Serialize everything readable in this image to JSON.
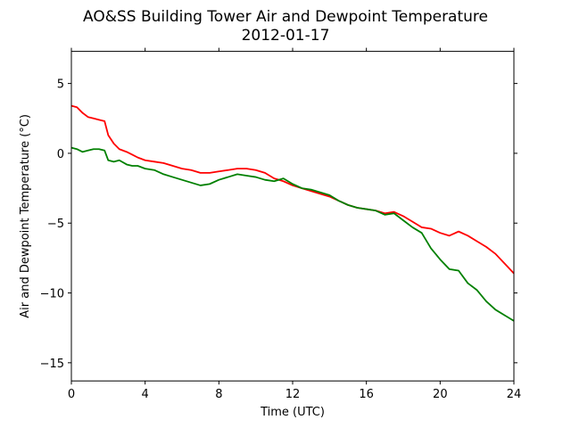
{
  "chart_data": {
    "type": "line",
    "title": "AO&SS Building Tower Air and Dewpoint Temperature",
    "subtitle": "2012-01-17",
    "xlabel": "Time (UTC)",
    "ylabel": "Air and Dewpoint Temperature (°C)",
    "xlim": [
      0,
      24
    ],
    "ylim": [
      -16.3,
      7.3
    ],
    "xticks": [
      0,
      4,
      8,
      12,
      16,
      20,
      24
    ],
    "xtick_labels": [
      "0",
      "4",
      "8",
      "12",
      "16",
      "20",
      "24"
    ],
    "yticks": [
      5,
      0,
      -5,
      -10,
      -15
    ],
    "ytick_labels": [
      "5",
      "0",
      "−5",
      "−10",
      "−15"
    ],
    "grid": false,
    "series": [
      {
        "color": "#ff0000",
        "x": [
          0,
          0.3,
          0.6,
          0.9,
          1.2,
          1.5,
          1.8,
          2.0,
          2.3,
          2.6,
          3.0,
          3.3,
          3.6,
          4.0,
          4.5,
          5.0,
          5.5,
          6.0,
          6.5,
          7.0,
          7.5,
          8.0,
          8.5,
          9.0,
          9.5,
          10.0,
          10.5,
          11.0,
          11.5,
          12.0,
          12.5,
          13.0,
          13.5,
          14.0,
          14.5,
          15.0,
          15.5,
          16.0,
          16.5,
          17.0,
          17.5,
          18.0,
          18.5,
          19.0,
          19.5,
          20.0,
          20.5,
          21.0,
          21.5,
          22.0,
          22.5,
          23.0,
          23.5,
          24.0
        ],
        "values": [
          3.4,
          3.3,
          2.9,
          2.6,
          2.5,
          2.4,
          2.3,
          1.3,
          0.7,
          0.3,
          0.1,
          -0.1,
          -0.3,
          -0.5,
          -0.6,
          -0.7,
          -0.9,
          -1.1,
          -1.2,
          -1.4,
          -1.4,
          -1.3,
          -1.2,
          -1.1,
          -1.1,
          -1.2,
          -1.4,
          -1.8,
          -2.0,
          -2.3,
          -2.5,
          -2.7,
          -2.9,
          -3.1,
          -3.4,
          -3.7,
          -3.9,
          -4.0,
          -4.1,
          -4.3,
          -4.2,
          -4.5,
          -4.9,
          -5.3,
          -5.4,
          -5.7,
          -5.9,
          -5.6,
          -5.9,
          -6.3,
          -6.7,
          -7.2,
          -7.9,
          -8.6
        ]
      },
      {
        "color": "#008000",
        "x": [
          0,
          0.3,
          0.6,
          0.9,
          1.2,
          1.5,
          1.8,
          2.0,
          2.3,
          2.6,
          3.0,
          3.3,
          3.6,
          4.0,
          4.5,
          5.0,
          5.5,
          6.0,
          6.5,
          7.0,
          7.5,
          8.0,
          8.5,
          9.0,
          9.5,
          10.0,
          10.5,
          11.0,
          11.5,
          12.0,
          12.5,
          13.0,
          13.5,
          14.0,
          14.5,
          15.0,
          15.5,
          16.0,
          16.5,
          17.0,
          17.5,
          18.0,
          18.5,
          19.0,
          19.5,
          20.0,
          20.5,
          21.0,
          21.5,
          22.0,
          22.5,
          23.0,
          23.5,
          24.0
        ],
        "values": [
          0.4,
          0.3,
          0.1,
          0.2,
          0.3,
          0.3,
          0.2,
          -0.5,
          -0.6,
          -0.5,
          -0.8,
          -0.9,
          -0.9,
          -1.1,
          -1.2,
          -1.5,
          -1.7,
          -1.9,
          -2.1,
          -2.3,
          -2.2,
          -1.9,
          -1.7,
          -1.5,
          -1.6,
          -1.7,
          -1.9,
          -2.0,
          -1.8,
          -2.2,
          -2.5,
          -2.6,
          -2.8,
          -3.0,
          -3.4,
          -3.7,
          -3.9,
          -4.0,
          -4.1,
          -4.4,
          -4.3,
          -4.8,
          -5.3,
          -5.7,
          -6.8,
          -7.6,
          -8.3,
          -8.4,
          -9.3,
          -9.8,
          -10.6,
          -11.2,
          -11.6,
          -12.0
        ]
      }
    ]
  }
}
